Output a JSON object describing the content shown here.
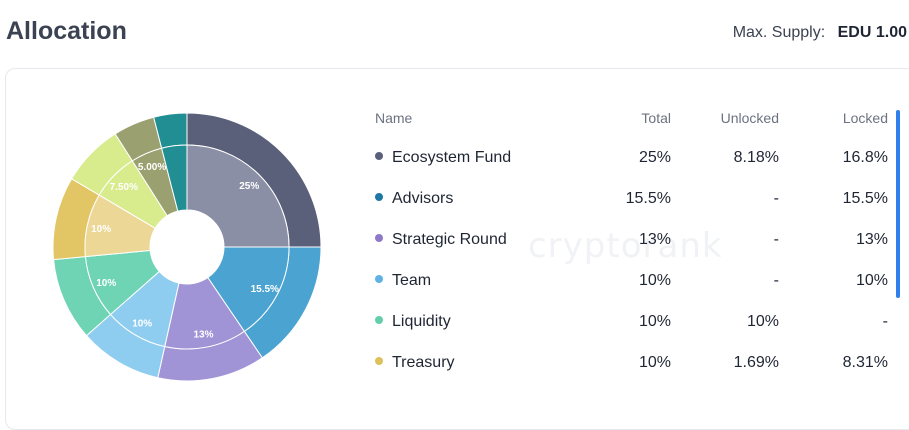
{
  "page_title": "Allocation",
  "max_supply": {
    "label": "Max. Supply:",
    "value": "EDU 1.00"
  },
  "watermark": "cryptorank",
  "table": {
    "headers": {
      "name": "Name",
      "total": "Total",
      "unlocked": "Unlocked",
      "locked": "Locked"
    },
    "rows": [
      {
        "name": "Ecosystem Fund",
        "total": "25%",
        "unlocked": "8.18%",
        "locked": "16.8%",
        "color": "#5a5f7a"
      },
      {
        "name": "Advisors",
        "total": "15.5%",
        "unlocked": "-",
        "locked": "15.5%",
        "color": "#1f77a6"
      },
      {
        "name": "Strategic Round",
        "total": "13%",
        "unlocked": "-",
        "locked": "13%",
        "color": "#8e79c9"
      },
      {
        "name": "Team",
        "total": "10%",
        "unlocked": "-",
        "locked": "10%",
        "color": "#5fb2e3"
      },
      {
        "name": "Liquidity",
        "total": "10%",
        "unlocked": "10%",
        "locked": "-",
        "color": "#63cfa9"
      },
      {
        "name": "Treasury",
        "total": "10%",
        "unlocked": "1.69%",
        "locked": "8.31%",
        "color": "#dcc25a"
      }
    ]
  },
  "chart_data": {
    "type": "pie",
    "variant": "donut",
    "slices": [
      {
        "label": "25%",
        "value": 25,
        "outer": "#5a5f7a",
        "inner": "#8b8fa6"
      },
      {
        "label": "15.5%",
        "value": 15.5,
        "outer": "#4aa3d0",
        "inner": "#4aa3d0"
      },
      {
        "label": "13%",
        "value": 13,
        "outer": "#a194d6",
        "inner": "#a194d6"
      },
      {
        "label": "10%",
        "value": 10,
        "outer": "#8fcdf0",
        "inner": "#8fcdf0"
      },
      {
        "label": "10%",
        "value": 10,
        "outer": "#6fd4b3",
        "inner": "#6fd4b3"
      },
      {
        "label": "10%",
        "value": 10,
        "outer": "#e2c564",
        "inner": "#ecd796"
      },
      {
        "label": "7.50%",
        "value": 7.5,
        "outer": "#d8ec8e",
        "inner": "#d8ec8e"
      },
      {
        "label": "5.00%",
        "value": 5,
        "outer": "#9aa06f",
        "inner": "#9aa06f"
      },
      {
        "label": "",
        "value": 4,
        "outer": "#218e94",
        "inner": "#218e94"
      }
    ]
  }
}
